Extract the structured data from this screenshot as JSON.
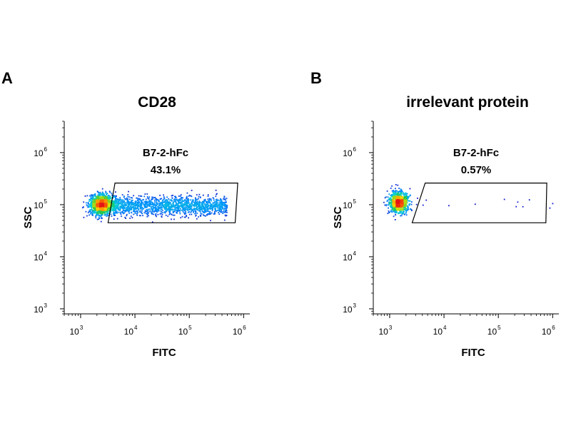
{
  "chart_data": [
    {
      "type": "scatter",
      "panel": "A",
      "title": "CD28",
      "xlabel": "FITC",
      "ylabel": "SSC",
      "x_scale": "log",
      "y_scale": "log",
      "xlim": [
        500,
        1300000
      ],
      "ylim": [
        800,
        4000000
      ],
      "x_ticks": [
        {
          "base": "10",
          "exp": "3",
          "value": 1000
        },
        {
          "base": "10",
          "exp": "4",
          "value": 10000
        },
        {
          "base": "10",
          "exp": "5",
          "value": 100000
        },
        {
          "base": "10",
          "exp": "6",
          "value": 1000000
        }
      ],
      "y_ticks": [
        {
          "base": "10",
          "exp": "3",
          "value": 1000
        },
        {
          "base": "10",
          "exp": "4",
          "value": 10000
        },
        {
          "base": "10",
          "exp": "5",
          "value": 100000
        },
        {
          "base": "10",
          "exp": "6",
          "value": 1000000
        }
      ],
      "gate": {
        "label": "B7-2-hFc",
        "percent": "43.1%",
        "vertices": [
          [
            4300,
            260000
          ],
          [
            780000,
            260000
          ],
          [
            700000,
            45000
          ],
          [
            3200,
            45000
          ]
        ]
      },
      "populations": [
        {
          "x_center": 2500,
          "y_center": 100000,
          "x_spread_decades": 0.12,
          "y_spread_decades": 0.1,
          "count": 1300,
          "density": "high"
        },
        {
          "x_range": [
            4000,
            500000
          ],
          "y_center": 95000,
          "y_spread_decades": 0.09,
          "count": 1500,
          "density": "medium"
        }
      ],
      "grid": false,
      "legend": "none"
    },
    {
      "type": "scatter",
      "panel": "B",
      "title": "irrelevant protein",
      "xlabel": "FITC",
      "ylabel": "SSC",
      "x_scale": "log",
      "y_scale": "log",
      "xlim": [
        500,
        1300000
      ],
      "ylim": [
        800,
        4000000
      ],
      "x_ticks": [
        {
          "base": "10",
          "exp": "3",
          "value": 1000
        },
        {
          "base": "10",
          "exp": "4",
          "value": 10000
        },
        {
          "base": "10",
          "exp": "5",
          "value": 100000
        },
        {
          "base": "10",
          "exp": "6",
          "value": 1000000
        }
      ],
      "y_ticks": [
        {
          "base": "10",
          "exp": "3",
          "value": 1000
        },
        {
          "base": "10",
          "exp": "4",
          "value": 10000
        },
        {
          "base": "10",
          "exp": "5",
          "value": 100000
        },
        {
          "base": "10",
          "exp": "6",
          "value": 1000000
        }
      ],
      "gate": {
        "label": "B7-2-hFc",
        "percent": "0.57%",
        "vertices": [
          [
            4500,
            260000
          ],
          [
            780000,
            260000
          ],
          [
            750000,
            45000
          ],
          [
            2600,
            45000
          ]
        ]
      },
      "populations": [
        {
          "x_center": 1500,
          "y_center": 110000,
          "x_spread_decades": 0.09,
          "y_spread_decades": 0.1,
          "count": 900,
          "density": "high"
        },
        {
          "x_range": [
            3000,
            1100000
          ],
          "y_center": 100000,
          "y_spread_decades": 0.08,
          "count": 12,
          "density": "low"
        }
      ],
      "grid": false,
      "legend": "none"
    }
  ]
}
